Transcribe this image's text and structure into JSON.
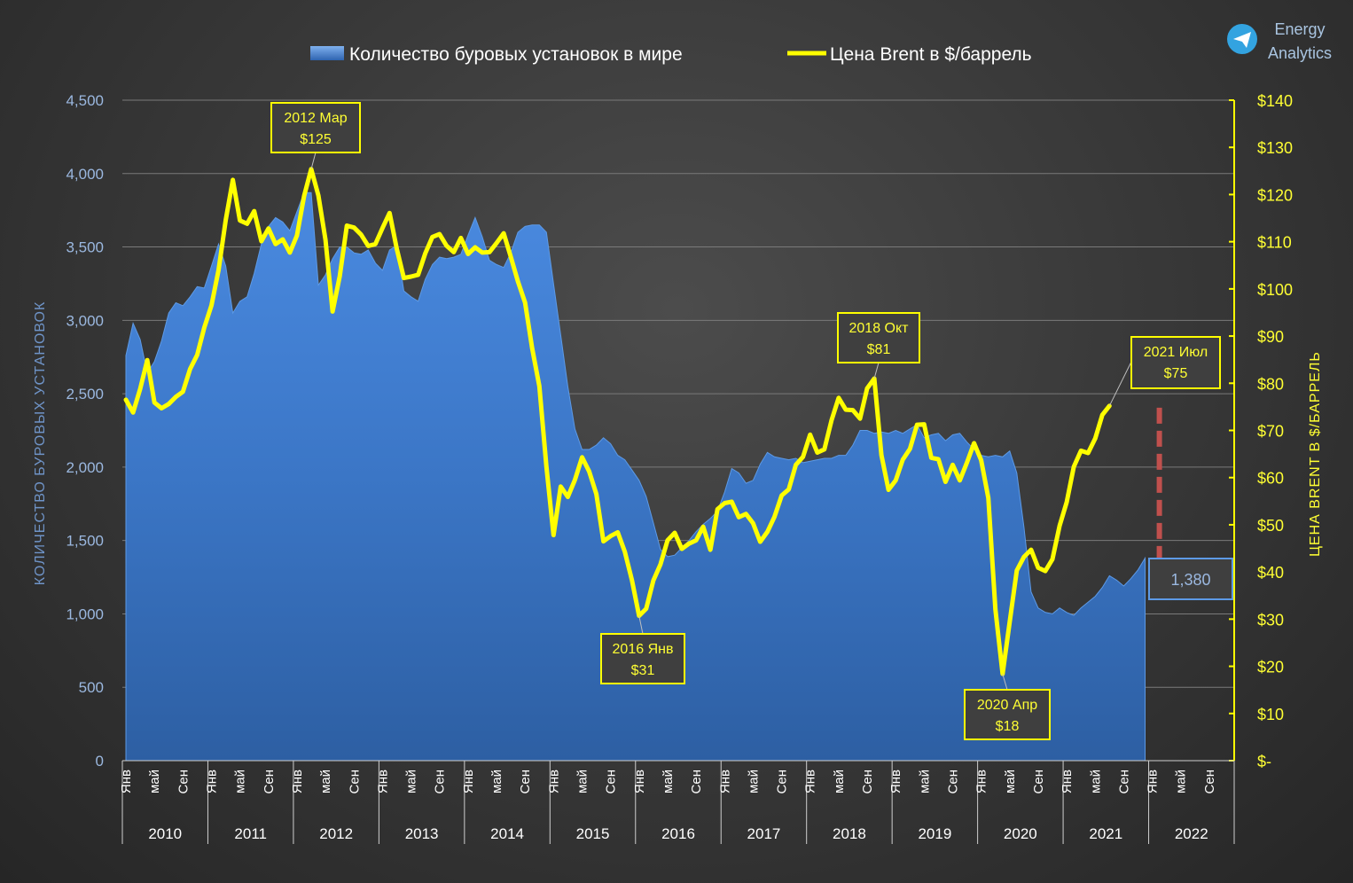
{
  "legend": {
    "rigs_label": "Количество буровых установок в мире",
    "brent_label": "Цена Brent в $/баррель"
  },
  "brand": {
    "line1": "Energy",
    "line2": "Analytics",
    "icon": "telegram-icon"
  },
  "colors": {
    "rig_fill": "#3f7fcf",
    "brent_line": "#ffff00",
    "dash": "#c0504d",
    "label_box": "#ffff00"
  },
  "chart_data": {
    "type": "area+line",
    "ylabel_left": "КОЛИЧЕСТВО   БУРОВЫХ   УСТАНОВОК",
    "ylabel_right": "ЦЕНА   BRENT   В   $/БАРРЕЛЬ",
    "ylim_left": [
      0,
      4500
    ],
    "ylim_right": [
      0,
      140
    ],
    "yticks_left": [
      "0",
      "500",
      "1,000",
      "1,500",
      "2,000",
      "2,500",
      "3,000",
      "3,500",
      "4,000",
      "4,500"
    ],
    "yticks_right": [
      "$-",
      "$10",
      "$20",
      "$30",
      "$40",
      "$50",
      "$60",
      "$70",
      "$80",
      "$90",
      "$100",
      "$110",
      "$120",
      "$130",
      "$140"
    ],
    "month_ticks": [
      "Янв",
      "май",
      "Сен"
    ],
    "years": [
      "2010",
      "2011",
      "2012",
      "2013",
      "2014",
      "2015",
      "2016",
      "2017",
      "2018",
      "2019",
      "2020",
      "2021",
      "2022"
    ],
    "series": [
      {
        "name": "Количество буровых установок в мире",
        "type": "area",
        "axis": "left",
        "values": [
          2760,
          2980,
          2870,
          2640,
          2720,
          2860,
          3050,
          3120,
          3100,
          3160,
          3230,
          3220,
          3370,
          3520,
          3370,
          3050,
          3130,
          3160,
          3320,
          3520,
          3640,
          3700,
          3670,
          3610,
          3740,
          3870,
          3870,
          3240,
          3310,
          3420,
          3500,
          3500,
          3460,
          3450,
          3480,
          3390,
          3340,
          3480,
          3510,
          3200,
          3160,
          3130,
          3280,
          3380,
          3430,
          3420,
          3430,
          3450,
          3580,
          3700,
          3570,
          3410,
          3380,
          3360,
          3460,
          3600,
          3640,
          3650,
          3650,
          3600,
          3250,
          2900,
          2550,
          2260,
          2120,
          2120,
          2150,
          2200,
          2160,
          2080,
          2050,
          1980,
          1910,
          1800,
          1620,
          1440,
          1390,
          1400,
          1450,
          1500,
          1560,
          1610,
          1650,
          1700,
          1830,
          1990,
          1960,
          1890,
          1910,
          2020,
          2100,
          2070,
          2060,
          2050,
          2060,
          2030,
          2040,
          2050,
          2060,
          2060,
          2080,
          2080,
          2150,
          2250,
          2250,
          2230,
          2240,
          2230,
          2250,
          2230,
          2260,
          2290,
          2200,
          2220,
          2230,
          2180,
          2220,
          2230,
          2170,
          2120,
          2080,
          2070,
          2080,
          2070,
          2110,
          1960,
          1590,
          1150,
          1040,
          1010,
          1000,
          1040,
          1010,
          990,
          1040,
          1080,
          1120,
          1180,
          1260,
          1230,
          1190,
          1240,
          1300,
          1380
        ],
        "end_label": "1,380"
      },
      {
        "name": "Цена Brent в $/баррель",
        "type": "line",
        "axis": "right",
        "values": [
          76.5,
          73.8,
          78.8,
          84.9,
          75.9,
          74.7,
          75.6,
          77.1,
          78.2,
          83,
          86,
          91.8,
          96.5,
          104,
          114.6,
          123.1,
          114.5,
          113.8,
          116.5,
          110.1,
          112.8,
          109.5,
          110.5,
          107.7,
          111.3,
          119.7,
          125.4,
          119.8,
          110.4,
          95.2,
          102.7,
          113.4,
          113,
          111.5,
          109.1,
          109.5,
          112.9,
          116.1,
          108.5,
          102.3,
          102.6,
          103,
          107.5,
          111,
          111.6,
          109.1,
          107.8,
          110.8,
          107.4,
          108.8,
          107.7,
          107.8,
          109.7,
          111.8,
          106.8,
          101.6,
          97.1,
          87.4,
          79.4,
          62.3,
          47.8,
          58.1,
          55.9,
          59.5,
          64.3,
          61.3,
          56.5,
          46.5,
          47.6,
          48.4,
          44.3,
          38.2,
          30.7,
          32.2,
          38.2,
          41.6,
          46.7,
          48.3,
          44.9,
          46,
          46.7,
          49.6,
          44.7,
          53.3,
          54.6,
          54.9,
          51.6,
          52.3,
          50.3,
          46.4,
          48.5,
          51.7,
          56.2,
          57.5,
          62.7,
          64.4,
          69.1,
          65.3,
          66,
          72.1,
          76.9,
          74.4,
          74.3,
          72.5,
          78.9,
          81,
          64.8,
          57.4,
          59.4,
          63.8,
          66.1,
          71.2,
          71.3,
          64.2,
          63.9,
          59.1,
          62.7,
          59.4,
          63.2,
          67.3,
          63.7,
          55.7,
          32,
          18.4,
          29.4,
          40.3,
          43.2,
          44.7,
          40.9,
          40.2,
          42.7,
          49.8,
          54.8,
          62.3,
          65.7,
          65.2,
          68.3,
          73.3,
          75.2
        ],
        "annotations": [
          {
            "line1": "2012 Мар",
            "line2": "$125"
          },
          {
            "line1": "2016 Янв",
            "line2": "$31"
          },
          {
            "line1": "2018 Окт",
            "line2": "$81"
          },
          {
            "line1": "2020 Апр",
            "line2": "$18"
          },
          {
            "line1": "2021 Июл",
            "line2": "$75"
          }
        ]
      }
    ]
  }
}
